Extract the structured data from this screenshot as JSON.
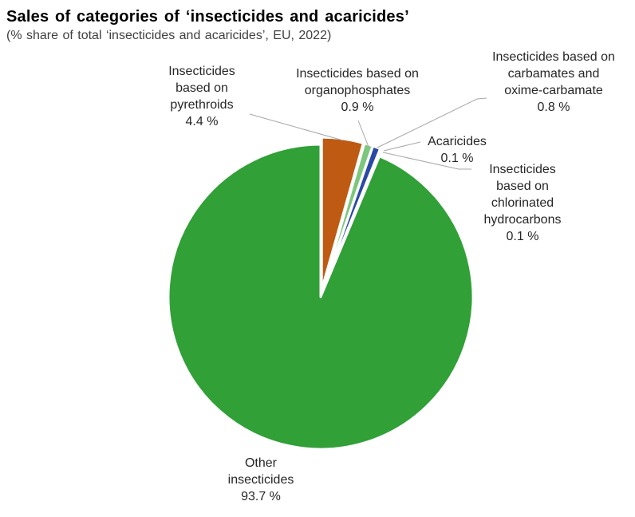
{
  "header": {
    "title": "Sales of categories of ‘insecticides and acaricides’",
    "subtitle": "(% share of total ‘insecticides and acaricides’, EU, 2022)"
  },
  "chart_data": {
    "type": "pie",
    "title": "Sales of categories of ‘insecticides and acaricides’",
    "subtitle": "(% share of total ‘insecticides and acaricides’, EU, 2022)",
    "unit": "%",
    "start_angle_deg": 0,
    "direction": "clockwise",
    "legend_position": "callout-labels",
    "slices": [
      {
        "name": "Insecticides based on pyrethroids",
        "value": 4.4,
        "color": "#BE5A11",
        "exploded": true,
        "callout": "Insecticides\nbased on\npyrethroids\n4.4 %"
      },
      {
        "name": "Insecticides based on organophosphates",
        "value": 0.9,
        "color": "#7DC77D",
        "exploded": true,
        "callout": "Insecticides based on\norganophosphates\n0.9 %"
      },
      {
        "name": "Insecticides based on carbamates and oxime-carbamate",
        "value": 0.8,
        "color": "#2A49A5",
        "exploded": true,
        "callout": "Insecticides based on\ncarbamates and\noxime-carbamate\n0.8 %"
      },
      {
        "name": "Acaricides",
        "value": 0.1,
        "color": "#BFBFBF",
        "exploded": true,
        "callout": "Acaricides\n0.1 %"
      },
      {
        "name": "Insecticides based on chlorinated hydrocarbons",
        "value": 0.1,
        "color": "#BFBFBF",
        "exploded": true,
        "callout": "Insecticides\nbased on\nchlorinated\nhydrocarbons\n0.1 %"
      },
      {
        "name": "Other insecticides",
        "value": 93.7,
        "color": "#31A037",
        "exploded": false,
        "callout": "Other\ninsecticides\n93.7 %"
      }
    ],
    "colors": {
      "leader_line": "#A6A6A6",
      "label_text": "#262626",
      "title_text": "#000000",
      "subtitle_text": "#404040",
      "background": "#FFFFFF"
    }
  }
}
